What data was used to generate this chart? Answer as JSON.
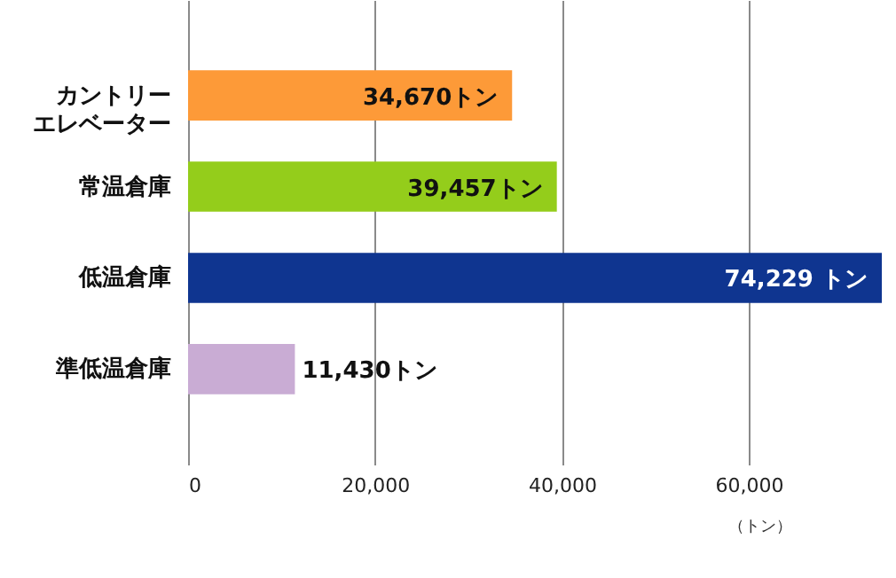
{
  "chart_data": {
    "type": "bar",
    "orientation": "horizontal",
    "categories": [
      "カントリーエレベーター",
      "常温倉庫",
      "低温倉庫",
      "準低温倉庫"
    ],
    "values": [
      34670,
      39457,
      74229,
      11430
    ],
    "value_labels": [
      "34,670トン",
      "39,457トン",
      "74,229 トン",
      "11,430トン"
    ],
    "colors": [
      "#fd9a38",
      "#94cd1b",
      "#0f3590",
      "#c9acd4"
    ],
    "xlabel": "（トン）",
    "xticks": [
      0,
      {
        "value": 20000,
        "label": "20,000"
      },
      {
        "value": 40000,
        "label": "40,000"
      },
      {
        "value": 60000,
        "label": "60,000"
      }
    ],
    "xlim": [
      0,
      74229
    ],
    "grid": "x"
  }
}
